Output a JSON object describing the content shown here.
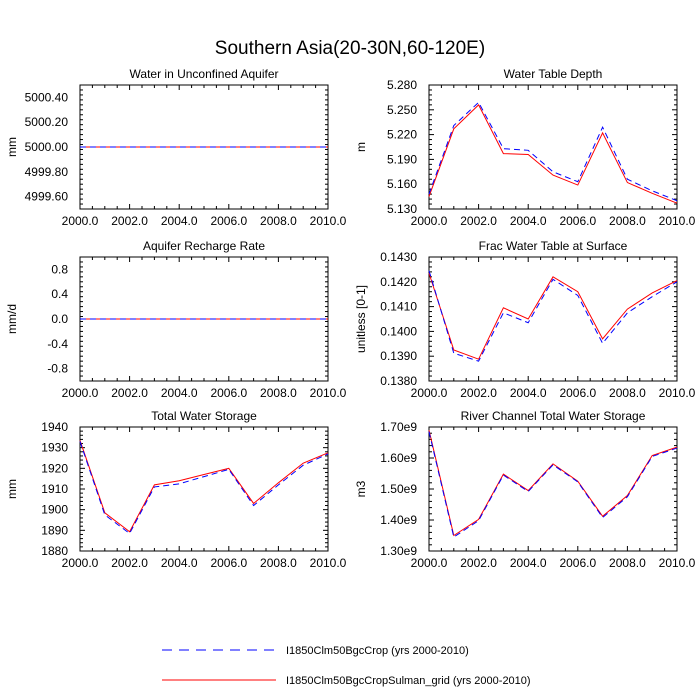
{
  "figure": {
    "title": "Southern Asia(20-30N,60-120E)"
  },
  "legend": [
    {
      "name": "I1850Clm50BgcCrop (yrs 2000-2010)",
      "color": "#0000ff",
      "dash": true
    },
    {
      "name": "I1850Clm50BgcCropSulman_grid (yrs 2000-2010)",
      "color": "#ff0000",
      "dash": false
    }
  ],
  "chart_data": [
    {
      "type": "line",
      "title": "Water in Unconfined Aquifer",
      "ylabel": "mm",
      "x": [
        2000,
        2001,
        2002,
        2003,
        2004,
        2005,
        2006,
        2007,
        2008,
        2009,
        2010
      ],
      "xlim": [
        2000,
        2010
      ],
      "xticks": [
        "2000.0",
        "2002.0",
        "2004.0",
        "2006.0",
        "2008.0",
        "2010.0"
      ],
      "ylim": [
        4999.5,
        5000.5
      ],
      "yticks": [
        "4999.60",
        "4999.80",
        "5000.00",
        "5000.20",
        "5000.40"
      ],
      "series": [
        {
          "name": "I1850Clm50BgcCrop (yrs 2000-2010)",
          "values": [
            5000,
            5000,
            5000,
            5000,
            5000,
            5000,
            5000,
            5000,
            5000,
            5000,
            5000
          ]
        },
        {
          "name": "I1850Clm50BgcCropSulman_grid (yrs 2000-2010)",
          "values": [
            5000,
            5000,
            5000,
            5000,
            5000,
            5000,
            5000,
            5000,
            5000,
            5000,
            5000
          ]
        }
      ]
    },
    {
      "type": "line",
      "title": "Water Table Depth",
      "ylabel": "m",
      "x": [
        2000,
        2001,
        2002,
        2003,
        2004,
        2005,
        2006,
        2007,
        2008,
        2009,
        2010
      ],
      "xlim": [
        2000,
        2010
      ],
      "xticks": [
        "2000.0",
        "2002.0",
        "2004.0",
        "2006.0",
        "2008.0",
        "2010.0"
      ],
      "ylim": [
        5.13,
        5.28
      ],
      "yticks": [
        "5.130",
        "5.160",
        "5.190",
        "5.220",
        "5.250",
        "5.280"
      ],
      "series": [
        {
          "name": "I1850Clm50BgcCrop (yrs 2000-2010)",
          "values": [
            5.148,
            5.231,
            5.259,
            5.203,
            5.201,
            5.175,
            5.163,
            5.229,
            5.166,
            5.152,
            5.14
          ]
        },
        {
          "name": "I1850Clm50BgcCropSulman_grid (yrs 2000-2010)",
          "values": [
            5.145,
            5.227,
            5.256,
            5.197,
            5.196,
            5.171,
            5.159,
            5.222,
            5.162,
            5.149,
            5.137
          ]
        }
      ]
    },
    {
      "type": "line",
      "title": "Aquifer Recharge Rate",
      "ylabel": "mm/d",
      "x": [
        2000,
        2001,
        2002,
        2003,
        2004,
        2005,
        2006,
        2007,
        2008,
        2009,
        2010
      ],
      "xlim": [
        2000,
        2010
      ],
      "xticks": [
        "2000.0",
        "2002.0",
        "2004.0",
        "2006.0",
        "2008.0",
        "2010.0"
      ],
      "ylim": [
        -1.0,
        1.0
      ],
      "yticks": [
        "-0.8",
        "-0.4",
        "0.0",
        "0.4",
        "0.8"
      ],
      "series": [
        {
          "name": "I1850Clm50BgcCrop (yrs 2000-2010)",
          "values": [
            0,
            0,
            0,
            0,
            0,
            0,
            0,
            0,
            0,
            0,
            0
          ]
        },
        {
          "name": "I1850Clm50BgcCropSulman_grid (yrs 2000-2010)",
          "values": [
            0,
            0,
            0,
            0,
            0,
            0,
            0,
            0,
            0,
            0,
            0
          ]
        }
      ]
    },
    {
      "type": "line",
      "title": "Frac Water Table at Surface",
      "ylabel": "unitless [0-1]",
      "x": [
        2000,
        2001,
        2002,
        2003,
        2004,
        2005,
        2006,
        2007,
        2008,
        2009,
        2010
      ],
      "xlim": [
        2000,
        2010
      ],
      "xticks": [
        "2000.0",
        "2002.0",
        "2004.0",
        "2006.0",
        "2008.0",
        "2010.0"
      ],
      "ylim": [
        0.138,
        0.143
      ],
      "yticks": [
        "0.1380",
        "0.1390",
        "0.1400",
        "0.1410",
        "0.1420",
        "0.1430"
      ],
      "series": [
        {
          "name": "I1850Clm50BgcCrop (yrs 2000-2010)",
          "values": [
            0.14245,
            0.13912,
            0.1388,
            0.14075,
            0.14035,
            0.1421,
            0.14145,
            0.13952,
            0.14075,
            0.1414,
            0.142
          ]
        },
        {
          "name": "I1850Clm50BgcCropSulman_grid (yrs 2000-2010)",
          "values": [
            0.14235,
            0.13925,
            0.13888,
            0.14095,
            0.1405,
            0.1422,
            0.1416,
            0.1397,
            0.1409,
            0.14155,
            0.14205
          ]
        }
      ]
    },
    {
      "type": "line",
      "title": "Total Water Storage",
      "ylabel": "mm",
      "x": [
        2000,
        2001,
        2002,
        2003,
        2004,
        2005,
        2006,
        2007,
        2008,
        2009,
        2010
      ],
      "xlim": [
        2000,
        2010
      ],
      "xticks": [
        "2000.0",
        "2002.0",
        "2004.0",
        "2006.0",
        "2008.0",
        "2010.0"
      ],
      "ylim": [
        1880,
        1940
      ],
      "yticks": [
        "1880",
        "1890",
        "1900",
        "1910",
        "1920",
        "1930",
        "1940"
      ],
      "series": [
        {
          "name": "I1850Clm50BgcCrop (yrs 2000-2010)",
          "values": [
            1933,
            1897.5,
            1888.5,
            1911,
            1912.5,
            1916,
            1919.5,
            1902,
            1912,
            1921.5,
            1927
          ]
        },
        {
          "name": "I1850Clm50BgcCropSulman_grid (yrs 2000-2010)",
          "values": [
            1933.5,
            1898.5,
            1889.3,
            1912,
            1914,
            1917,
            1920,
            1903,
            1913,
            1922.5,
            1927.5
          ]
        }
      ]
    },
    {
      "type": "line",
      "title": "River Channel Total Water Storage",
      "ylabel": "m3",
      "x": [
        2000,
        2001,
        2002,
        2003,
        2004,
        2005,
        2006,
        2007,
        2008,
        2009,
        2010
      ],
      "xlim": [
        2000,
        2010
      ],
      "xticks": [
        "2000.0",
        "2002.0",
        "2004.0",
        "2006.0",
        "2008.0",
        "2010.0"
      ],
      "ylim": [
        1300000000,
        1700000000
      ],
      "yticks": [
        "1.30e9",
        "1.40e9",
        "1.50e9",
        "1.60e9",
        "1.70e9"
      ],
      "series": [
        {
          "name": "I1850Clm50BgcCrop (yrs 2000-2010)",
          "values": [
            1685000000,
            1345000000,
            1398000000,
            1545000000,
            1492000000,
            1578000000,
            1523000000,
            1408000000,
            1475000000,
            1605000000,
            1632000000
          ]
        },
        {
          "name": "I1850Clm50BgcCropSulman_grid (yrs 2000-2010)",
          "values": [
            1690000000,
            1350000000,
            1402000000,
            1548000000,
            1495000000,
            1581000000,
            1525000000,
            1412000000,
            1479000000,
            1608000000,
            1635000000
          ]
        }
      ]
    }
  ]
}
